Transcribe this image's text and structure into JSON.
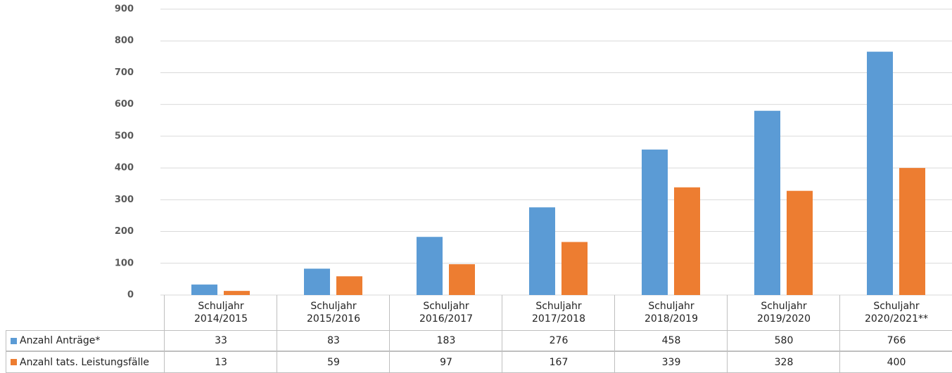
{
  "chart_data": {
    "type": "bar",
    "categories": [
      "Schuljahr 2014/2015",
      "Schuljahr 2015/2016",
      "Schuljahr 2016/2017",
      "Schuljahr 2017/2018",
      "Schuljahr 2018/2019",
      "Schuljahr 2019/2020",
      "Schuljahr 2020/2021**"
    ],
    "series": [
      {
        "name": "Anzahl Anträge*",
        "color": "#5b9bd5",
        "values": [
          33,
          83,
          183,
          276,
          458,
          580,
          766
        ]
      },
      {
        "name": "Anzahl tats. Leistungsfälle",
        "color": "#ed7d31",
        "values": [
          13,
          59,
          97,
          167,
          339,
          328,
          400
        ]
      }
    ],
    "ylim": [
      0,
      900
    ],
    "yticks": [
      0,
      100,
      200,
      300,
      400,
      500,
      600,
      700,
      800,
      900
    ],
    "grid": true,
    "data_table": true
  }
}
